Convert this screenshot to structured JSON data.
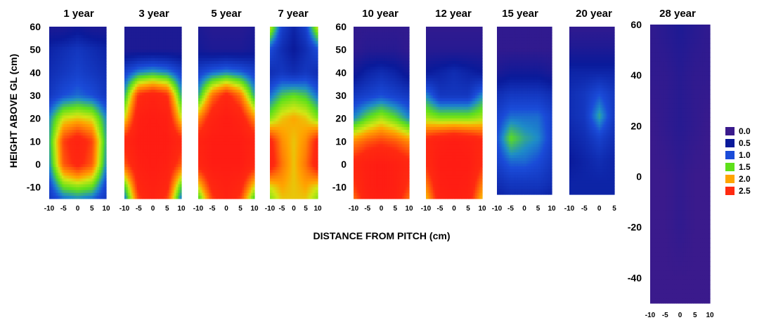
{
  "chart_data": {
    "type": "heatmap",
    "xlabel": "DISTANCE FROM PITCH (cm)",
    "ylabel": "HEIGHT ABOVE GL (cm)",
    "ylim": [
      -15,
      60
    ],
    "y_ticks": [
      60,
      50,
      40,
      30,
      20,
      10,
      0,
      -10
    ],
    "x_ticks": [
      -10,
      -5,
      0,
      5,
      10
    ],
    "panels": [
      {
        "title": "1 year",
        "x_tick_labels": [
          "-10",
          "-5",
          "0",
          "5",
          "10"
        ],
        "x": [
          -10,
          -5,
          0,
          5,
          10
        ],
        "y": [
          60,
          50,
          40,
          30,
          20,
          10,
          0,
          -10,
          -15
        ],
        "z": [
          [
            0.3,
            0.3,
            0.4,
            0.3,
            0.3
          ],
          [
            0.6,
            0.7,
            0.8,
            0.7,
            0.6
          ],
          [
            0.7,
            0.8,
            0.9,
            0.8,
            0.7
          ],
          [
            0.8,
            1.0,
            1.1,
            1.0,
            0.8
          ],
          [
            1.2,
            1.8,
            1.9,
            1.8,
            1.2
          ],
          [
            1.3,
            2.4,
            2.7,
            2.4,
            1.3
          ],
          [
            1.2,
            2.3,
            2.6,
            2.3,
            1.2
          ],
          [
            0.9,
            1.5,
            1.6,
            1.5,
            0.9
          ],
          [
            0.8,
            1.1,
            1.2,
            1.1,
            0.8
          ]
        ]
      },
      {
        "title": "3 year",
        "x_tick_labels": [
          "-10",
          "-5",
          "0",
          "5",
          "10"
        ],
        "x": [
          -10,
          -5,
          0,
          5,
          10
        ],
        "y": [
          60,
          50,
          40,
          30,
          20,
          10,
          0,
          -10,
          -15
        ],
        "z": [
          [
            0.3,
            0.3,
            0.3,
            0.3,
            0.3
          ],
          [
            0.3,
            0.3,
            0.3,
            0.3,
            0.3
          ],
          [
            0.9,
            1.2,
            1.3,
            1.2,
            0.9
          ],
          [
            1.3,
            2.5,
            2.7,
            2.5,
            1.3
          ],
          [
            1.8,
            2.8,
            2.9,
            2.8,
            1.8
          ],
          [
            2.6,
            2.9,
            2.9,
            2.9,
            2.6
          ],
          [
            2.3,
            2.8,
            2.9,
            2.8,
            2.3
          ],
          [
            1.4,
            2.6,
            2.8,
            2.6,
            1.4
          ],
          [
            1.1,
            2.4,
            2.7,
            2.4,
            1.1
          ]
        ]
      },
      {
        "title": "5 year",
        "x_tick_labels": [
          "-10",
          "-5",
          "0",
          "5",
          "10"
        ],
        "x": [
          -10,
          -5,
          0,
          5,
          10
        ],
        "y": [
          60,
          50,
          40,
          30,
          20,
          10,
          0,
          -10,
          -15
        ],
        "z": [
          [
            0.3,
            0.2,
            0.2,
            0.2,
            0.3
          ],
          [
            0.4,
            0.3,
            0.3,
            0.3,
            0.4
          ],
          [
            0.9,
            1.1,
            1.2,
            1.1,
            0.9
          ],
          [
            1.3,
            2.2,
            2.6,
            2.2,
            1.3
          ],
          [
            2.1,
            2.7,
            2.9,
            2.7,
            2.1
          ],
          [
            2.7,
            2.9,
            2.9,
            2.9,
            2.7
          ],
          [
            2.6,
            2.9,
            2.9,
            2.9,
            2.6
          ],
          [
            1.8,
            2.6,
            2.8,
            2.6,
            1.8
          ],
          [
            1.4,
            2.4,
            2.7,
            2.4,
            1.4
          ]
        ]
      },
      {
        "title": "7 year",
        "x_tick_labels": [
          "-10",
          "-5",
          "0",
          "5",
          "10"
        ],
        "x": [
          -10,
          -5,
          0,
          5,
          10
        ],
        "y": [
          60,
          50,
          40,
          30,
          20,
          10,
          0,
          -10,
          -15
        ],
        "z": [
          [
            1.8,
            0.9,
            0.6,
            0.9,
            1.8
          ],
          [
            1.0,
            0.7,
            0.5,
            0.7,
            1.0
          ],
          [
            0.7,
            0.8,
            0.7,
            0.8,
            0.7
          ],
          [
            1.1,
            1.4,
            1.5,
            1.4,
            1.1
          ],
          [
            1.6,
            1.9,
            2.0,
            1.9,
            1.6
          ],
          [
            2.6,
            2.1,
            1.9,
            2.1,
            2.6
          ],
          [
            2.7,
            2.2,
            1.9,
            2.2,
            2.7
          ],
          [
            1.8,
            2.0,
            1.9,
            2.0,
            1.8
          ],
          [
            1.6,
            1.9,
            1.9,
            1.9,
            1.6
          ]
        ]
      },
      {
        "title": "10 year",
        "x_tick_labels": [
          "-10",
          "-5",
          "0",
          "5",
          "10"
        ],
        "x": [
          -10,
          -5,
          0,
          5,
          10
        ],
        "y": [
          60,
          50,
          40,
          30,
          20,
          10,
          0,
          -10,
          -15
        ],
        "z": [
          [
            0.1,
            0.1,
            0.1,
            0.1,
            0.1
          ],
          [
            0.1,
            0.2,
            0.2,
            0.2,
            0.1
          ],
          [
            0.4,
            0.6,
            0.7,
            0.6,
            0.4
          ],
          [
            0.8,
            0.9,
            1.0,
            0.9,
            0.8
          ],
          [
            1.2,
            1.5,
            1.7,
            1.5,
            1.2
          ],
          [
            2.1,
            2.3,
            2.4,
            2.3,
            2.1
          ],
          [
            2.6,
            2.8,
            2.9,
            2.8,
            2.6
          ],
          [
            2.4,
            2.8,
            2.9,
            2.8,
            2.4
          ],
          [
            2.2,
            2.7,
            2.8,
            2.7,
            2.2
          ]
        ]
      },
      {
        "title": "12 year",
        "x_tick_labels": [
          "-10",
          "-5",
          "0",
          "5",
          "10"
        ],
        "x": [
          -10,
          -5,
          0,
          5,
          10
        ],
        "y": [
          60,
          50,
          40,
          30,
          20,
          10,
          0,
          -10,
          -15
        ],
        "z": [
          [
            0.1,
            0.1,
            0.1,
            0.1,
            0.1
          ],
          [
            0.2,
            0.2,
            0.2,
            0.2,
            0.2
          ],
          [
            0.5,
            0.6,
            0.7,
            0.6,
            0.5
          ],
          [
            1.2,
            0.8,
            0.8,
            0.8,
            1.2
          ],
          [
            1.7,
            1.6,
            1.6,
            1.6,
            1.7
          ],
          [
            2.6,
            2.8,
            2.9,
            2.8,
            2.6
          ],
          [
            2.5,
            2.9,
            2.9,
            2.9,
            2.5
          ],
          [
            2.1,
            2.8,
            2.9,
            2.8,
            2.1
          ],
          [
            1.9,
            2.7,
            2.8,
            2.7,
            1.9
          ]
        ]
      },
      {
        "title": "15 year",
        "x_tick_labels": [
          "-10",
          "-5",
          "0",
          "5",
          "10"
        ],
        "x": [
          -10,
          -5,
          0,
          5,
          10
        ],
        "y": [
          60,
          50,
          40,
          30,
          20,
          10,
          0,
          -10,
          -15
        ],
        "z": [
          [
            0.1,
            0.1,
            0.1,
            0.1,
            0.1
          ],
          [
            0.1,
            0.1,
            0.1,
            0.1,
            0.1
          ],
          [
            0.3,
            0.4,
            0.4,
            0.4,
            0.3
          ],
          [
            0.7,
            0.8,
            0.8,
            0.8,
            0.7
          ],
          [
            0.9,
            1.1,
            1.1,
            1.1,
            0.9
          ],
          [
            1.0,
            1.5,
            1.3,
            1.2,
            0.9
          ],
          [
            0.9,
            1.1,
            1.1,
            1.0,
            0.8
          ],
          [
            0.7,
            0.8,
            0.8,
            0.8,
            0.7
          ],
          [
            0.6,
            0.7,
            0.7,
            0.7,
            0.6
          ]
        ]
      },
      {
        "title": "20 year",
        "x_tick_labels": [
          "-10",
          "-5",
          "0",
          "5"
        ],
        "x": [
          -10,
          -5,
          0,
          5
        ],
        "y": [
          60,
          50,
          40,
          30,
          20,
          10,
          0,
          -10,
          -15
        ],
        "z": [
          [
            0.1,
            0.1,
            0.1,
            0.1
          ],
          [
            0.3,
            0.3,
            0.3,
            0.3
          ],
          [
            0.6,
            0.6,
            0.6,
            0.6
          ],
          [
            0.7,
            0.8,
            1.0,
            0.8
          ],
          [
            0.7,
            0.8,
            1.3,
            0.8
          ],
          [
            0.6,
            0.7,
            0.9,
            0.7
          ],
          [
            0.5,
            0.6,
            0.7,
            0.6
          ],
          [
            0.6,
            0.6,
            0.6,
            0.6
          ],
          [
            0.6,
            0.6,
            0.6,
            0.6
          ]
        ]
      },
      {
        "title": "28 year",
        "x_tick_labels": [
          "-10",
          "-5",
          "0",
          "5",
          "10"
        ],
        "ylim": [
          -50,
          60
        ],
        "y_ticks": [
          60,
          40,
          20,
          0,
          -20,
          -40
        ],
        "x": [
          -10,
          -5,
          0,
          5,
          10
        ],
        "y": [
          60,
          40,
          20,
          0,
          -20,
          -40,
          -50
        ],
        "z": [
          [
            0.1,
            0.2,
            0.3,
            0.2,
            0.1
          ],
          [
            0.1,
            0.1,
            0.2,
            0.1,
            0.1
          ],
          [
            0.0,
            0.1,
            0.2,
            0.1,
            0.0
          ],
          [
            0.0,
            0.0,
            0.1,
            0.0,
            0.0
          ],
          [
            0.0,
            0.0,
            0.1,
            0.0,
            0.0
          ],
          [
            0.0,
            0.0,
            0.0,
            0.0,
            0.0
          ],
          [
            0.0,
            0.0,
            0.0,
            0.0,
            0.0
          ]
        ]
      }
    ],
    "legend": [
      {
        "label": "0.0",
        "value": 0.0,
        "color": "#3a1a8c"
      },
      {
        "label": "0.5",
        "value": 0.5,
        "color": "#0a1a9a"
      },
      {
        "label": "1.0",
        "value": 1.0,
        "color": "#1a4bd8"
      },
      {
        "label": "1.5",
        "value": 1.5,
        "color": "#5ee01a"
      },
      {
        "label": "2.0",
        "value": 2.0,
        "color": "#ffa500"
      },
      {
        "label": "2.5",
        "value": 2.5,
        "color": "#ff2a10"
      }
    ],
    "legend_position": "right"
  }
}
